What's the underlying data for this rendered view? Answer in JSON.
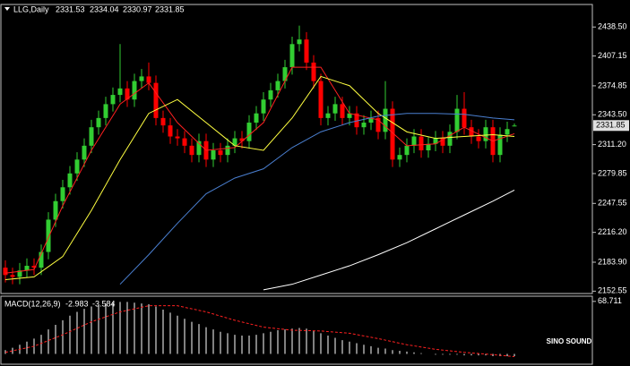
{
  "chart_data": {
    "type": "candlestick",
    "title": "LLG,Daily",
    "open": [
      2178,
      2170,
      2168,
      2175,
      2180,
      2178,
      2195,
      2230,
      2250,
      2265,
      2280,
      2295,
      2310,
      2330,
      2340,
      2355,
      2365,
      2372,
      2360,
      2380,
      2385,
      2378,
      2340,
      2332,
      2320,
      2318,
      2310,
      2300,
      2315,
      2295,
      2305,
      2300,
      2310,
      2318,
      2315,
      2335,
      2345,
      2360,
      2370,
      2380,
      2395,
      2420,
      2425,
      2400,
      2380,
      2340,
      2345,
      2355,
      2340,
      2345,
      2330,
      2335,
      2340,
      2325,
      2350,
      2295,
      2300,
      2310,
      2320,
      2305,
      2312,
      2318,
      2310,
      2325,
      2350,
      2330,
      2320,
      2315,
      2330,
      2300,
      2322,
      2331.53
    ],
    "high": [
      2186,
      2178,
      2183,
      2188,
      2188,
      2203,
      2238,
      2258,
      2273,
      2288,
      2303,
      2318,
      2338,
      2348,
      2363,
      2373,
      2420,
      2380,
      2388,
      2393,
      2400,
      2386,
      2348,
      2340,
      2328,
      2326,
      2318,
      2323,
      2323,
      2313,
      2313,
      2318,
      2326,
      2326,
      2343,
      2353,
      2368,
      2378,
      2388,
      2403,
      2428,
      2440,
      2433,
      2408,
      2388,
      2353,
      2363,
      2363,
      2353,
      2353,
      2343,
      2348,
      2348,
      2380,
      2358,
      2308,
      2318,
      2328,
      2328,
      2320,
      2326,
      2326,
      2333,
      2365,
      2368,
      2338,
      2328,
      2338,
      2338,
      2330,
      2336,
      2334.04
    ],
    "low": [
      2162,
      2160,
      2160,
      2167,
      2170,
      2170,
      2187,
      2222,
      2242,
      2257,
      2272,
      2287,
      2302,
      2322,
      2332,
      2347,
      2357,
      2352,
      2352,
      2372,
      2370,
      2332,
      2324,
      2312,
      2310,
      2302,
      2292,
      2292,
      2287,
      2287,
      2292,
      2292,
      2302,
      2307,
      2307,
      2327,
      2337,
      2352,
      2362,
      2372,
      2387,
      2412,
      2392,
      2372,
      2332,
      2332,
      2337,
      2332,
      2332,
      2322,
      2322,
      2327,
      2317,
      2317,
      2287,
      2287,
      2292,
      2302,
      2297,
      2297,
      2304,
      2302,
      2302,
      2317,
      2322,
      2312,
      2307,
      2307,
      2292,
      2292,
      2314,
      2330.97
    ],
    "close": [
      2170,
      2168,
      2175,
      2180,
      2178,
      2195,
      2230,
      2250,
      2265,
      2280,
      2295,
      2310,
      2330,
      2340,
      2355,
      2365,
      2372,
      2360,
      2380,
      2385,
      2378,
      2340,
      2332,
      2320,
      2318,
      2310,
      2300,
      2315,
      2295,
      2305,
      2300,
      2310,
      2318,
      2315,
      2335,
      2345,
      2360,
      2370,
      2380,
      2395,
      2420,
      2425,
      2400,
      2380,
      2340,
      2345,
      2355,
      2340,
      2345,
      2330,
      2335,
      2340,
      2325,
      2350,
      2295,
      2300,
      2310,
      2320,
      2305,
      2312,
      2318,
      2310,
      2325,
      2350,
      2330,
      2320,
      2315,
      2330,
      2300,
      2322,
      2328,
      2331.85
    ],
    "up_color": "#32cd32",
    "down_color": "#ff0000",
    "ylim": [
      2150,
      2460
    ],
    "yticks": [
      {
        "value": 2438.5,
        "label": "2438.50"
      },
      2407.15,
      2374.85,
      {
        "value": 2343.5,
        "label": "2343.50"
      },
      {
        "value": 2311.2,
        "label": "2311.20"
      },
      2279.85,
      2247.55,
      {
        "value": 2216.2,
        "label": "2216.20"
      },
      {
        "value": 2183.9,
        "label": "2183.90"
      },
      2152.55
    ],
    "lines": [
      {
        "color": "#ff2020",
        "x": [
          0,
          4,
          8,
          12,
          16,
          20,
          24,
          28,
          32,
          36,
          40,
          44,
          48,
          52,
          56,
          60,
          64,
          68,
          71
        ],
        "values": [
          2172,
          2176,
          2245,
          2305,
          2355,
          2378,
          2335,
          2305,
          2308,
          2335,
          2395,
          2395,
          2345,
          2338,
          2310,
          2312,
          2330,
          2315,
          2323
        ]
      },
      {
        "color": "#ffff40",
        "x": [
          0,
          4,
          8,
          12,
          16,
          20,
          24,
          28,
          32,
          36,
          40,
          44,
          48,
          52,
          56,
          60,
          64,
          68,
          71
        ],
        "values": [
          2165,
          2168,
          2190,
          2240,
          2295,
          2345,
          2360,
          2335,
          2310,
          2305,
          2340,
          2385,
          2375,
          2345,
          2325,
          2318,
          2320,
          2322,
          2320
        ]
      },
      {
        "color": "#4a7fd0",
        "x": [
          16,
          20,
          24,
          28,
          32,
          36,
          40,
          44,
          48,
          52,
          56,
          60,
          64,
          68,
          71
        ],
        "values": [
          2160,
          2192,
          2226,
          2258,
          2275,
          2285,
          2308,
          2325,
          2335,
          2342,
          2345,
          2345,
          2344,
          2340,
          2338
        ]
      },
      {
        "color": "#ffffff",
        "x": [
          36,
          40,
          44,
          48,
          52,
          56,
          60,
          64,
          68,
          71
        ],
        "values": [
          2154,
          2160,
          2170,
          2180,
          2192,
          2205,
          2220,
          2235,
          2250,
          2262
        ]
      }
    ],
    "macd": {
      "label": "MACD(12,26,9)",
      "color": "#ffffff",
      "histogram": [
        5,
        8,
        12,
        16,
        20,
        25,
        32,
        38,
        44,
        50,
        55,
        59,
        62,
        64,
        66,
        67,
        68,
        68,
        67,
        66,
        65,
        62,
        58,
        54,
        50,
        46,
        42,
        39,
        35,
        32,
        29,
        27,
        25,
        24,
        24,
        25,
        27,
        29,
        31,
        32,
        33,
        34,
        33,
        30,
        27,
        24,
        21,
        18,
        16,
        14,
        12,
        10,
        8,
        7,
        5,
        4,
        3,
        2,
        1,
        0,
        -1,
        -1,
        -1,
        -1,
        -2,
        -2,
        -2,
        -2,
        -3,
        -3,
        -3,
        -2.983
      ],
      "signal": {
        "color": "#ff2020",
        "x": [
          0,
          4,
          8,
          12,
          16,
          20,
          24,
          28,
          32,
          36,
          40,
          44,
          48,
          52,
          56,
          60,
          64,
          68,
          71
        ],
        "values": [
          2,
          10,
          25,
          42,
          55,
          63,
          63,
          55,
          44,
          35,
          31,
          30,
          27,
          20,
          12,
          6,
          2,
          -1,
          -3.584
        ]
      },
      "ylim": [
        -10,
        72
      ],
      "yticks": [
        68.711
      ]
    },
    "watermark": "SINO SOUND"
  }
}
